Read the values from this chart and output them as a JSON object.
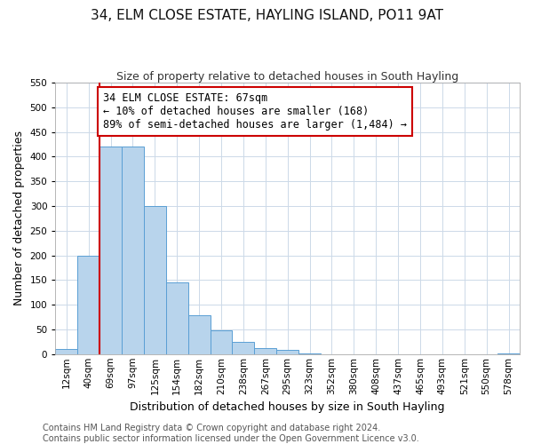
{
  "title": "34, ELM CLOSE ESTATE, HAYLING ISLAND, PO11 9AT",
  "subtitle": "Size of property relative to detached houses in South Hayling",
  "xlabel": "Distribution of detached houses by size in South Hayling",
  "ylabel": "Number of detached properties",
  "footnote1": "Contains HM Land Registry data © Crown copyright and database right 2024.",
  "footnote2": "Contains public sector information licensed under the Open Government Licence v3.0.",
  "bin_labels": [
    "12sqm",
    "40sqm",
    "69sqm",
    "97sqm",
    "125sqm",
    "154sqm",
    "182sqm",
    "210sqm",
    "238sqm",
    "267sqm",
    "295sqm",
    "323sqm",
    "352sqm",
    "380sqm",
    "408sqm",
    "437sqm",
    "465sqm",
    "493sqm",
    "521sqm",
    "550sqm",
    "578sqm"
  ],
  "bin_counts": [
    10,
    200,
    420,
    420,
    300,
    145,
    78,
    48,
    25,
    13,
    8,
    1,
    0,
    0,
    0,
    0,
    0,
    0,
    0,
    0,
    2
  ],
  "bar_color": "#b8d4ec",
  "bar_edge_color": "#5a9fd4",
  "marker_line_color": "#cc0000",
  "ylim": [
    0,
    550
  ],
  "yticks": [
    0,
    50,
    100,
    150,
    200,
    250,
    300,
    350,
    400,
    450,
    500,
    550
  ],
  "annotation_line1": "34 ELM CLOSE ESTATE: 67sqm",
  "annotation_line2": "← 10% of detached houses are smaller (168)",
  "annotation_line3": "89% of semi-detached houses are larger (1,484) →",
  "annotation_box_color": "#ffffff",
  "annotation_box_edge": "#cc0000",
  "title_fontsize": 11,
  "subtitle_fontsize": 9,
  "axis_label_fontsize": 9,
  "tick_fontsize": 7.5,
  "annotation_fontsize": 8.5,
  "footnote_fontsize": 7
}
